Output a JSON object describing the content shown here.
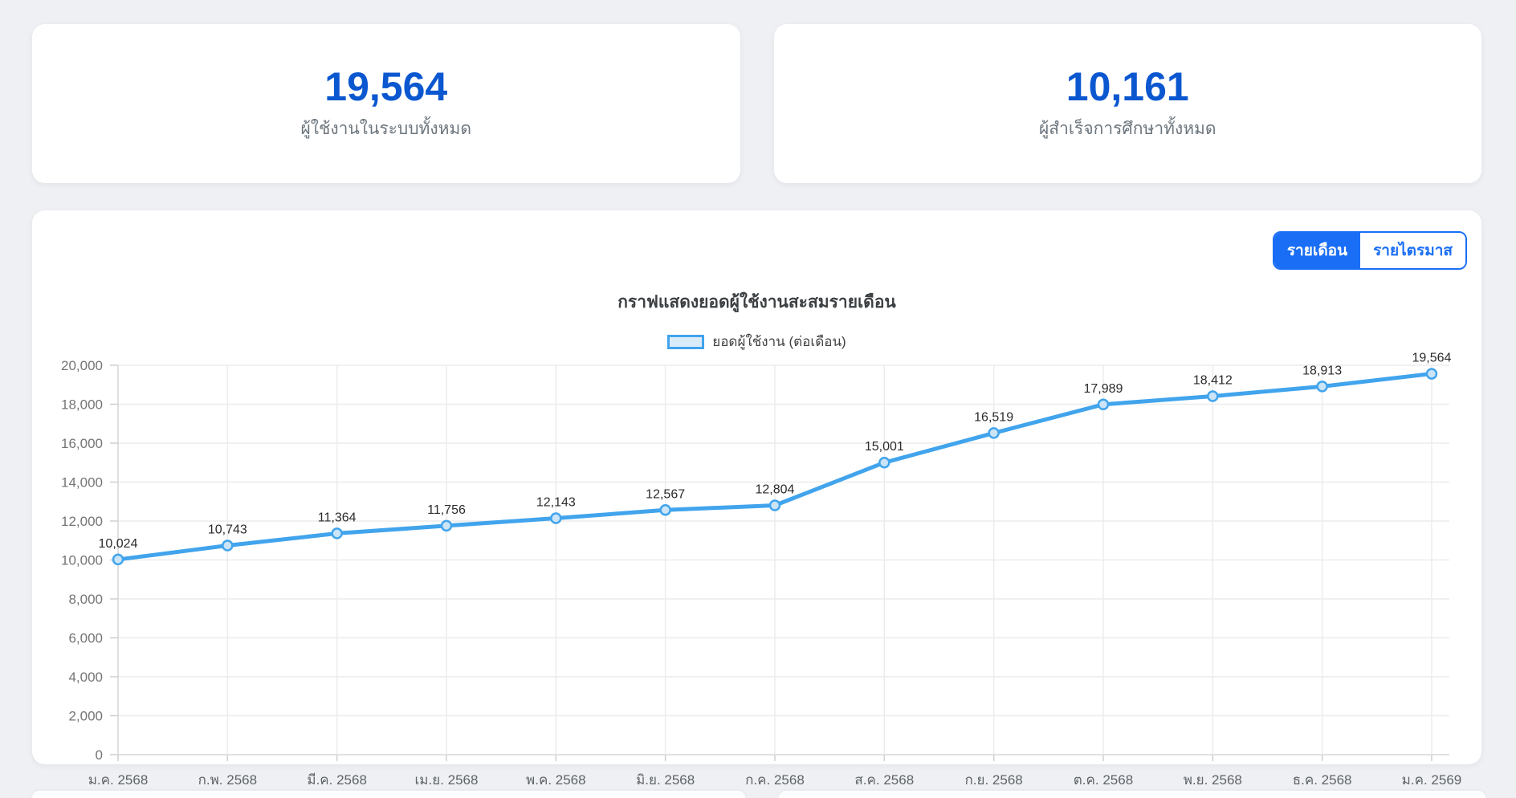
{
  "stats": [
    {
      "value": "19,564",
      "label": "ผู้ใช้งานในระบบทั้งหมด"
    },
    {
      "value": "10,161",
      "label": "ผู้สำเร็จการศึกษาทั้งหมด"
    }
  ],
  "toggle": {
    "monthly_label": "รายเดือน",
    "quarterly_label": "รายไตรมาส",
    "active": "monthly"
  },
  "chart_data": {
    "type": "line",
    "title": "กราฟแสดงยอดผู้ใช้งานสะสมรายเดือน",
    "legend": "ยอดผู้ใช้งาน (ต่อเดือน)",
    "legend_position": "top",
    "categories": [
      "ม.ค. 2568",
      "ก.พ. 2568",
      "มี.ค. 2568",
      "เม.ย. 2568",
      "พ.ค. 2568",
      "มิ.ย. 2568",
      "ก.ค. 2568",
      "ส.ค. 2568",
      "ก.ย. 2568",
      "ต.ค. 2568",
      "พ.ย. 2568",
      "ธ.ค. 2568",
      "ม.ค. 2569"
    ],
    "values": [
      10024,
      10743,
      11364,
      11756,
      12143,
      12567,
      12804,
      15001,
      16519,
      17989,
      18412,
      18913,
      19564
    ],
    "xlabel": "",
    "ylabel": "",
    "ylim": [
      0,
      20000
    ],
    "ytick_step": 2000,
    "grid": true,
    "line_color": "#41a4ec",
    "point_fill": "#cbe4f7",
    "data_label_color": "#2b2b2b",
    "axis_label_color": "#757575",
    "month_label_color": "#5f6368"
  },
  "colors": {
    "stat_value": "#0b57d0",
    "toggle_accent": "#1a6ef5",
    "page_background": "#eef0f3"
  }
}
